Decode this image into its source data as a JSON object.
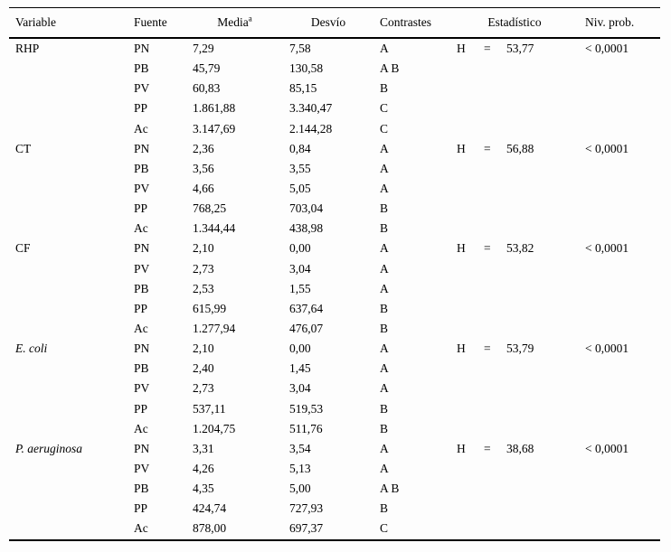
{
  "table": {
    "header": {
      "variable": "Variable",
      "fuente": "Fuente",
      "media": "Media",
      "media_sup": "a",
      "desvio": "Desvío",
      "contrastes": "Contrastes",
      "estadistico": "Estadístico",
      "niv_prob": "Niv. prob."
    },
    "rows": [
      {
        "variable": "RHP",
        "fuente": "PN",
        "media": "7,29",
        "desvio": "7,58",
        "contrastes": "A",
        "stat_h": "H",
        "stat_eq": "=",
        "stat_value": "53,77",
        "niv_prob": "< 0,0001"
      },
      {
        "variable": "",
        "fuente": "PB",
        "media": "45,79",
        "desvio": "130,58",
        "contrastes": "A B",
        "stat_h": "",
        "stat_eq": "",
        "stat_value": "",
        "niv_prob": ""
      },
      {
        "variable": "",
        "fuente": "PV",
        "media": "60,83",
        "desvio": "85,15",
        "contrastes": "B",
        "stat_h": "",
        "stat_eq": "",
        "stat_value": "",
        "niv_prob": ""
      },
      {
        "variable": "",
        "fuente": "PP",
        "media": "1.861,88",
        "desvio": "3.340,47",
        "contrastes": "C",
        "stat_h": "",
        "stat_eq": "",
        "stat_value": "",
        "niv_prob": ""
      },
      {
        "variable": "",
        "fuente": "Ac",
        "media": "3.147,69",
        "desvio": "2.144,28",
        "contrastes": "C",
        "stat_h": "",
        "stat_eq": "",
        "stat_value": "",
        "niv_prob": ""
      },
      {
        "variable": "CT",
        "fuente": "PN",
        "media": "2,36",
        "desvio": "0,84",
        "contrastes": "A",
        "stat_h": "H",
        "stat_eq": "=",
        "stat_value": "56,88",
        "niv_prob": "< 0,0001"
      },
      {
        "variable": "",
        "fuente": "PB",
        "media": "3,56",
        "desvio": "3,55",
        "contrastes": "A",
        "stat_h": "",
        "stat_eq": "",
        "stat_value": "",
        "niv_prob": ""
      },
      {
        "variable": "",
        "fuente": "PV",
        "media": "4,66",
        "desvio": "5,05",
        "contrastes": "A",
        "stat_h": "",
        "stat_eq": "",
        "stat_value": "",
        "niv_prob": ""
      },
      {
        "variable": "",
        "fuente": "PP",
        "media": "768,25",
        "desvio": "703,04",
        "contrastes": "B",
        "stat_h": "",
        "stat_eq": "",
        "stat_value": "",
        "niv_prob": ""
      },
      {
        "variable": "",
        "fuente": "Ac",
        "media": "1.344,44",
        "desvio": "438,98",
        "contrastes": "B",
        "stat_h": "",
        "stat_eq": "",
        "stat_value": "",
        "niv_prob": ""
      },
      {
        "variable": "CF",
        "fuente": "PN",
        "media": "2,10",
        "desvio": "0,00",
        "contrastes": "A",
        "stat_h": "H",
        "stat_eq": "=",
        "stat_value": "53,82",
        "niv_prob": "< 0,0001"
      },
      {
        "variable": "",
        "fuente": "PV",
        "media": "2,73",
        "desvio": "3,04",
        "contrastes": "A",
        "stat_h": "",
        "stat_eq": "",
        "stat_value": "",
        "niv_prob": ""
      },
      {
        "variable": "",
        "fuente": "PB",
        "media": "2,53",
        "desvio": "1,55",
        "contrastes": "A",
        "stat_h": "",
        "stat_eq": "",
        "stat_value": "",
        "niv_prob": ""
      },
      {
        "variable": "",
        "fuente": "PP",
        "media": "615,99",
        "desvio": "637,64",
        "contrastes": "B",
        "stat_h": "",
        "stat_eq": "",
        "stat_value": "",
        "niv_prob": ""
      },
      {
        "variable": "",
        "fuente": "Ac",
        "media": "1.277,94",
        "desvio": "476,07",
        "contrastes": "B",
        "stat_h": "",
        "stat_eq": "",
        "stat_value": "",
        "niv_prob": ""
      },
      {
        "variable": "E. coli",
        "fuente": "PN",
        "media": "2,10",
        "desvio": "0,00",
        "contrastes": "A",
        "stat_h": "H",
        "stat_eq": "=",
        "stat_value": "53,79",
        "niv_prob": "< 0,0001"
      },
      {
        "variable": "",
        "fuente": "PB",
        "media": "2,40",
        "desvio": "1,45",
        "contrastes": "A",
        "stat_h": "",
        "stat_eq": "",
        "stat_value": "",
        "niv_prob": ""
      },
      {
        "variable": "",
        "fuente": "PV",
        "media": "2,73",
        "desvio": "3,04",
        "contrastes": "A",
        "stat_h": "",
        "stat_eq": "",
        "stat_value": "",
        "niv_prob": ""
      },
      {
        "variable": "",
        "fuente": "PP",
        "media": "537,11",
        "desvio": "519,53",
        "contrastes": "B",
        "stat_h": "",
        "stat_eq": "",
        "stat_value": "",
        "niv_prob": ""
      },
      {
        "variable": "",
        "fuente": "Ac",
        "media": "1.204,75",
        "desvio": "511,76",
        "contrastes": "B",
        "stat_h": "",
        "stat_eq": "",
        "stat_value": "",
        "niv_prob": ""
      },
      {
        "variable": "P. aeruginosa",
        "fuente": "PN",
        "media": "3,31",
        "desvio": "3,54",
        "contrastes": "A",
        "stat_h": "H",
        "stat_eq": "=",
        "stat_value": "38,68",
        "niv_prob": "< 0,0001"
      },
      {
        "variable": "",
        "fuente": "PV",
        "media": "4,26",
        "desvio": "5,13",
        "contrastes": "A",
        "stat_h": "",
        "stat_eq": "",
        "stat_value": "",
        "niv_prob": ""
      },
      {
        "variable": "",
        "fuente": "PB",
        "media": "4,35",
        "desvio": "5,00",
        "contrastes": "A B",
        "stat_h": "",
        "stat_eq": "",
        "stat_value": "",
        "niv_prob": ""
      },
      {
        "variable": "",
        "fuente": "PP",
        "media": "424,74",
        "desvio": "727,93",
        "contrastes": "B",
        "stat_h": "",
        "stat_eq": "",
        "stat_value": "",
        "niv_prob": ""
      },
      {
        "variable": "",
        "fuente": "Ac",
        "media": "878,00",
        "desvio": "697,37",
        "contrastes": "C",
        "stat_h": "",
        "stat_eq": "",
        "stat_value": "",
        "niv_prob": ""
      }
    ]
  }
}
